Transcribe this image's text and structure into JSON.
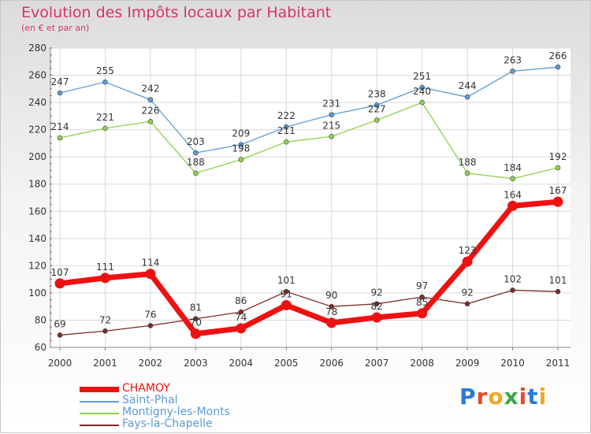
{
  "chart_data": {
    "type": "line",
    "title": "Evolution des Impôts locaux par Habitant",
    "subtitle": "(en € et par an)",
    "xlabel": "",
    "ylabel": "",
    "x": [
      "2000",
      "2001",
      "2002",
      "2003",
      "2004",
      "2005",
      "2006",
      "2007",
      "2008",
      "2009",
      "2010",
      "2011"
    ],
    "ylim": [
      60,
      280
    ],
    "yticks": [
      60,
      80,
      100,
      120,
      140,
      160,
      180,
      200,
      220,
      240,
      260,
      280
    ],
    "grid": true,
    "legend_position": "bottom-left",
    "series": [
      {
        "name": "CHAMOY",
        "color": "#ee1111",
        "values": [
          107,
          111,
          114,
          70,
          74,
          91,
          78,
          82,
          85,
          123,
          164,
          167
        ]
      },
      {
        "name": "Saint-Phal",
        "color": "#5b9bd5",
        "values": [
          247,
          255,
          242,
          203,
          209,
          222,
          231,
          238,
          251,
          244,
          263,
          266
        ]
      },
      {
        "name": "Montigny-les-Monts",
        "color": "#8fd14f",
        "values": [
          214,
          221,
          226,
          188,
          198,
          211,
          215,
          227,
          240,
          188,
          184,
          192
        ]
      },
      {
        "name": "Fays-la-Chapelle",
        "color": "#7a2a2a",
        "values": [
          69,
          72,
          76,
          81,
          86,
          101,
          90,
          92,
          97,
          92,
          102,
          101
        ]
      }
    ]
  },
  "logo": {
    "text": "Proxiti"
  }
}
